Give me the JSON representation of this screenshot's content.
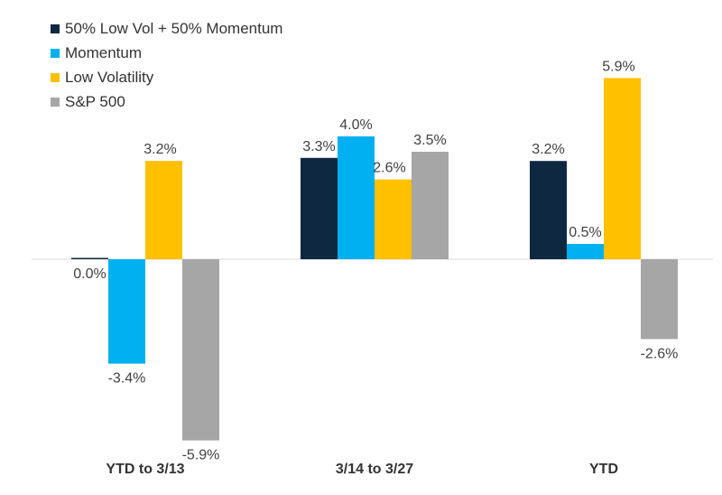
{
  "chart_data": {
    "type": "bar",
    "categories": [
      "YTD to 3/13",
      "3/14 to 3/27",
      "YTD"
    ],
    "series": [
      {
        "name": "50% Low Vol + 50% Momentum",
        "color": "#0e2841",
        "values": [
          0.0,
          3.3,
          3.2
        ],
        "labels": [
          "0.0%",
          "3.3%",
          "3.2%"
        ]
      },
      {
        "name": "Momentum",
        "color": "#00b0f0",
        "values": [
          -3.4,
          4.0,
          0.5
        ],
        "labels": [
          "-3.4%",
          "4.0%",
          "0.5%"
        ]
      },
      {
        "name": "Low Volatility",
        "color": "#ffc000",
        "values": [
          3.2,
          2.6,
          5.9
        ],
        "labels": [
          "3.2%",
          "2.6%",
          "5.9%"
        ]
      },
      {
        "name": "S&P 500",
        "color": "#a6a6a6",
        "values": [
          -5.9,
          3.5,
          -2.6
        ],
        "labels": [
          "-5.9%",
          "3.5%",
          "-2.6%"
        ]
      }
    ],
    "title": "",
    "xlabel": "",
    "ylabel": "",
    "ylim": [
      -6.0,
      6.0
    ],
    "grid": false,
    "legend": "top-left"
  }
}
